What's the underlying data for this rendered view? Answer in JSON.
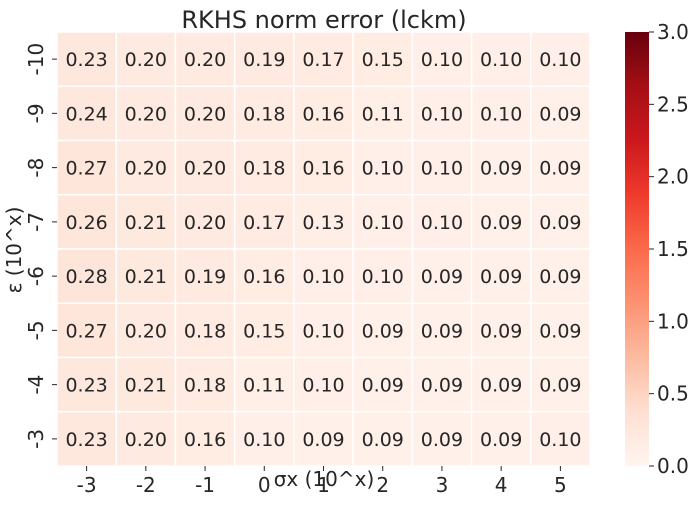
{
  "chart_data": {
    "type": "heatmap",
    "title": "RKHS norm error (lckm)",
    "xlabel": "σx (10^x)",
    "ylabel": "ε (10^x)",
    "x_categories": [
      "-3",
      "-2",
      "-1",
      "0",
      "1",
      "2",
      "3",
      "4",
      "5"
    ],
    "y_categories": [
      "-10",
      "-9",
      "-8",
      "-7",
      "-6",
      "-5",
      "-4",
      "-3"
    ],
    "values": [
      [
        0.23,
        0.2,
        0.2,
        0.19,
        0.17,
        0.15,
        0.1,
        0.1,
        0.1
      ],
      [
        0.24,
        0.2,
        0.2,
        0.18,
        0.16,
        0.11,
        0.1,
        0.1,
        0.09
      ],
      [
        0.27,
        0.2,
        0.2,
        0.18,
        0.16,
        0.1,
        0.1,
        0.09,
        0.09
      ],
      [
        0.26,
        0.21,
        0.2,
        0.17,
        0.13,
        0.1,
        0.1,
        0.09,
        0.09
      ],
      [
        0.28,
        0.21,
        0.19,
        0.16,
        0.1,
        0.1,
        0.09,
        0.09,
        0.09
      ],
      [
        0.27,
        0.2,
        0.18,
        0.15,
        0.1,
        0.09,
        0.09,
        0.09,
        0.09
      ],
      [
        0.23,
        0.21,
        0.18,
        0.11,
        0.1,
        0.09,
        0.09,
        0.09,
        0.09
      ],
      [
        0.23,
        0.2,
        0.16,
        0.1,
        0.09,
        0.09,
        0.09,
        0.09,
        0.1
      ]
    ],
    "colorbar": {
      "min": 0.0,
      "max": 3.0,
      "ticks": [
        "0.0",
        "0.5",
        "1.0",
        "1.5",
        "2.0",
        "2.5",
        "3.0"
      ],
      "colormap": [
        "#fff5f0",
        "#fee0d2",
        "#fcbba1",
        "#fc9272",
        "#fb6a4a",
        "#ef3b2c",
        "#cb181d",
        "#a50f15",
        "#67000d"
      ]
    },
    "grid_lines": "white"
  }
}
